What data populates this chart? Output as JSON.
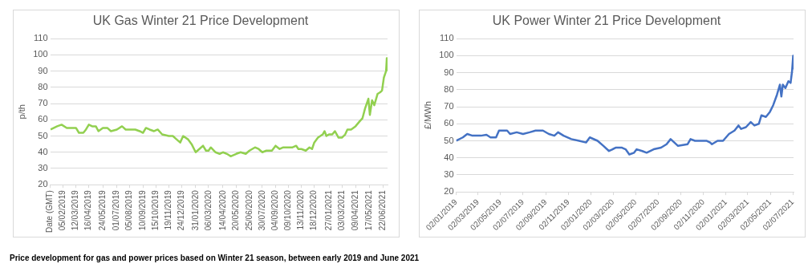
{
  "chart_data": [
    {
      "type": "line",
      "title": "UK Gas Winter 21 Price Development",
      "ylabel": "p/th",
      "grid": "y",
      "legend": false,
      "marker": "none",
      "x": [
        "2019-01-02",
        "2019-01-20",
        "2019-02-01",
        "2019-02-15",
        "2019-03-01",
        "2019-03-12",
        "2019-03-20",
        "2019-04-01",
        "2019-04-08",
        "2019-04-16",
        "2019-04-25",
        "2019-05-05",
        "2019-05-12",
        "2019-05-24",
        "2019-06-05",
        "2019-06-15",
        "2019-07-01",
        "2019-07-15",
        "2019-07-25",
        "2019-08-05",
        "2019-08-20",
        "2019-09-01",
        "2019-09-10",
        "2019-09-18",
        "2019-09-28",
        "2019-10-10",
        "2019-10-20",
        "2019-11-01",
        "2019-11-19",
        "2019-11-30",
        "2019-12-10",
        "2019-12-20",
        "2019-12-28",
        "2020-01-10",
        "2020-01-20",
        "2020-01-31",
        "2020-02-10",
        "2020-02-20",
        "2020-02-28",
        "2020-03-06",
        "2020-03-12",
        "2020-03-25",
        "2020-04-05",
        "2020-04-14",
        "2020-04-25",
        "2020-05-05",
        "2020-05-20",
        "2020-06-01",
        "2020-06-15",
        "2020-06-25",
        "2020-07-10",
        "2020-07-20",
        "2020-07-30",
        "2020-08-10",
        "2020-08-25",
        "2020-09-04",
        "2020-09-15",
        "2020-09-25",
        "2020-10-09",
        "2020-10-20",
        "2020-10-30",
        "2020-11-05",
        "2020-11-13",
        "2020-11-25",
        "2020-12-05",
        "2020-12-12",
        "2020-12-18",
        "2020-12-28",
        "2021-01-10",
        "2021-01-15",
        "2021-01-20",
        "2021-01-27",
        "2021-02-05",
        "2021-02-12",
        "2021-02-22",
        "2021-03-03",
        "2021-03-12",
        "2021-03-18",
        "2021-03-28",
        "2021-04-09",
        "2021-04-20",
        "2021-04-28",
        "2021-05-05",
        "2021-05-14",
        "2021-05-18",
        "2021-05-24",
        "2021-05-30",
        "2021-06-08",
        "2021-06-15",
        "2021-06-20",
        "2021-06-25",
        "2021-07-01",
        "2021-07-03",
        "2021-07-05"
      ],
      "series": [
        {
          "color": "#92d050",
          "values": [
            54,
            56,
            57,
            55,
            55,
            55,
            52,
            52,
            54,
            57,
            56,
            56,
            53,
            55,
            55,
            53,
            54,
            56,
            54,
            54,
            54,
            53,
            52,
            55,
            54,
            53,
            54,
            51,
            50,
            50,
            48,
            46,
            50,
            48,
            45,
            40,
            42,
            44,
            41,
            41,
            43,
            40,
            39,
            40,
            39,
            37.5,
            39,
            40,
            39,
            41,
            43,
            42,
            40,
            41,
            41,
            44,
            42,
            43,
            43,
            43,
            44,
            42,
            42,
            41,
            43,
            42,
            46,
            49,
            51,
            53,
            50,
            51,
            51,
            53,
            49,
            49,
            51,
            54,
            54,
            56,
            59,
            61,
            67,
            73,
            63,
            72,
            69,
            76,
            77,
            78,
            86,
            90,
            98,
            90
          ]
        }
      ],
      "xlim": [
        "2019-01-01",
        "2021-07-05"
      ],
      "xticks": [
        {
          "value": "2019-01-01",
          "label": "Date (GMT)"
        },
        {
          "value": "2019-02-05",
          "label": "05/02/2019"
        },
        {
          "value": "2019-03-12",
          "label": "12/03/2019"
        },
        {
          "value": "2019-04-16",
          "label": "16/04/2019"
        },
        {
          "value": "2019-05-24",
          "label": "24/05/2019"
        },
        {
          "value": "2019-07-01",
          "label": "01/07/2019"
        },
        {
          "value": "2019-08-05",
          "label": "05/08/2019"
        },
        {
          "value": "2019-09-10",
          "label": "10/09/2019"
        },
        {
          "value": "2019-10-15",
          "label": "15/10/2019"
        },
        {
          "value": "2019-11-19",
          "label": "19/11/2019"
        },
        {
          "value": "2019-12-24",
          "label": "24/12/2019"
        },
        {
          "value": "2020-01-31",
          "label": "31/01/2020"
        },
        {
          "value": "2020-03-06",
          "label": "06/03/2020"
        },
        {
          "value": "2020-04-14",
          "label": "14/04/2020"
        },
        {
          "value": "2020-05-20",
          "label": "20/05/2020"
        },
        {
          "value": "2020-06-25",
          "label": "25/06/2020"
        },
        {
          "value": "2020-07-30",
          "label": "30/07/2020"
        },
        {
          "value": "2020-09-04",
          "label": "04/09/2020"
        },
        {
          "value": "2020-10-09",
          "label": "09/10/2020"
        },
        {
          "value": "2020-11-13",
          "label": "13/11/2020"
        },
        {
          "value": "2020-12-18",
          "label": "18/12/2020"
        },
        {
          "value": "2021-01-27",
          "label": "27/01/2021"
        },
        {
          "value": "2021-03-03",
          "label": "03/03/2021"
        },
        {
          "value": "2021-04-09",
          "label": "09/04/2021"
        },
        {
          "value": "2021-05-17",
          "label": "17/05/2021"
        },
        {
          "value": "2021-06-22",
          "label": "22/06/2021"
        }
      ],
      "ylim": [
        20,
        110
      ],
      "yticks": [
        20,
        30,
        40,
        50,
        60,
        70,
        80,
        90,
        100,
        110
      ],
      "annotations": [
        "Price development for gas and power prices based on Winter 21 season, between early 2019 and June 2021"
      ]
    },
    {
      "type": "line",
      "title": "UK Power Winter 21 Price Development",
      "ylabel": "£/MWh",
      "grid": "y",
      "legend": false,
      "marker": "none",
      "x": [
        "2019-01-02",
        "2019-01-20",
        "2019-02-01",
        "2019-02-15",
        "2019-03-10",
        "2019-03-25",
        "2019-04-05",
        "2019-04-20",
        "2019-04-28",
        "2019-05-20",
        "2019-05-28",
        "2019-06-15",
        "2019-07-02",
        "2019-07-20",
        "2019-08-05",
        "2019-08-25",
        "2019-09-10",
        "2019-09-25",
        "2019-10-05",
        "2019-10-20",
        "2019-11-10",
        "2019-12-01",
        "2019-12-20",
        "2019-12-30",
        "2020-01-20",
        "2020-02-05",
        "2020-02-20",
        "2020-03-10",
        "2020-03-25",
        "2020-04-05",
        "2020-04-15",
        "2020-04-28",
        "2020-05-05",
        "2020-05-20",
        "2020-06-01",
        "2020-06-20",
        "2020-07-10",
        "2020-07-25",
        "2020-08-05",
        "2020-08-15",
        "2020-08-25",
        "2020-09-20",
        "2020-09-28",
        "2020-10-10",
        "2020-10-25",
        "2020-11-10",
        "2020-11-20",
        "2020-11-25",
        "2020-12-10",
        "2020-12-25",
        "2021-01-10",
        "2021-01-25",
        "2021-02-05",
        "2021-02-12",
        "2021-02-25",
        "2021-03-10",
        "2021-03-20",
        "2021-04-01",
        "2021-04-08",
        "2021-04-20",
        "2021-05-01",
        "2021-05-10",
        "2021-05-20",
        "2021-05-28",
        "2021-06-01",
        "2021-06-05",
        "2021-06-12",
        "2021-06-20",
        "2021-06-26",
        "2021-06-30",
        "2021-07-03",
        "2021-07-04"
      ],
      "series": [
        {
          "color": "#4472c4",
          "values": [
            50,
            52,
            54,
            53,
            53,
            53.5,
            52,
            52,
            56,
            56,
            54,
            55,
            54,
            55,
            56,
            56,
            54,
            53,
            55,
            53,
            51,
            50,
            49,
            52,
            50,
            47,
            44,
            46,
            46,
            45,
            42,
            43,
            45,
            44,
            43,
            45,
            46,
            48,
            51,
            49,
            47,
            48,
            51,
            50,
            50,
            50,
            49,
            48,
            50,
            50,
            54,
            56,
            59,
            57,
            58,
            61,
            59,
            60,
            65,
            64,
            67,
            71,
            77,
            83,
            76,
            83,
            81,
            85,
            84,
            91,
            100,
            92
          ]
        }
      ],
      "xlim": [
        "2019-01-02",
        "2021-07-04"
      ],
      "xticks": [
        {
          "value": "2019-01-02",
          "label": "02/01/2019"
        },
        {
          "value": "2019-03-02",
          "label": "02/03/2019"
        },
        {
          "value": "2019-05-02",
          "label": "02/05/2019"
        },
        {
          "value": "2019-07-02",
          "label": "02/07/2019"
        },
        {
          "value": "2019-09-02",
          "label": "02/09/2019"
        },
        {
          "value": "2019-11-02",
          "label": "02/11/2019"
        },
        {
          "value": "2020-01-02",
          "label": "02/01/2020"
        },
        {
          "value": "2020-03-02",
          "label": "02/03/2020"
        },
        {
          "value": "2020-05-02",
          "label": "02/05/2020"
        },
        {
          "value": "2020-07-02",
          "label": "02/07/2020"
        },
        {
          "value": "2020-09-02",
          "label": "02/09/2020"
        },
        {
          "value": "2020-11-02",
          "label": "02/11/2020"
        },
        {
          "value": "2021-01-02",
          "label": "02/01/2021"
        },
        {
          "value": "2021-03-02",
          "label": "02/03/2021"
        },
        {
          "value": "2021-05-02",
          "label": "02/05/2021"
        },
        {
          "value": "2021-07-02",
          "label": "02/07/2021"
        }
      ],
      "ylim": [
        20,
        110
      ],
      "yticks": [
        20,
        30,
        40,
        50,
        60,
        70,
        80,
        90,
        100,
        110
      ]
    }
  ]
}
